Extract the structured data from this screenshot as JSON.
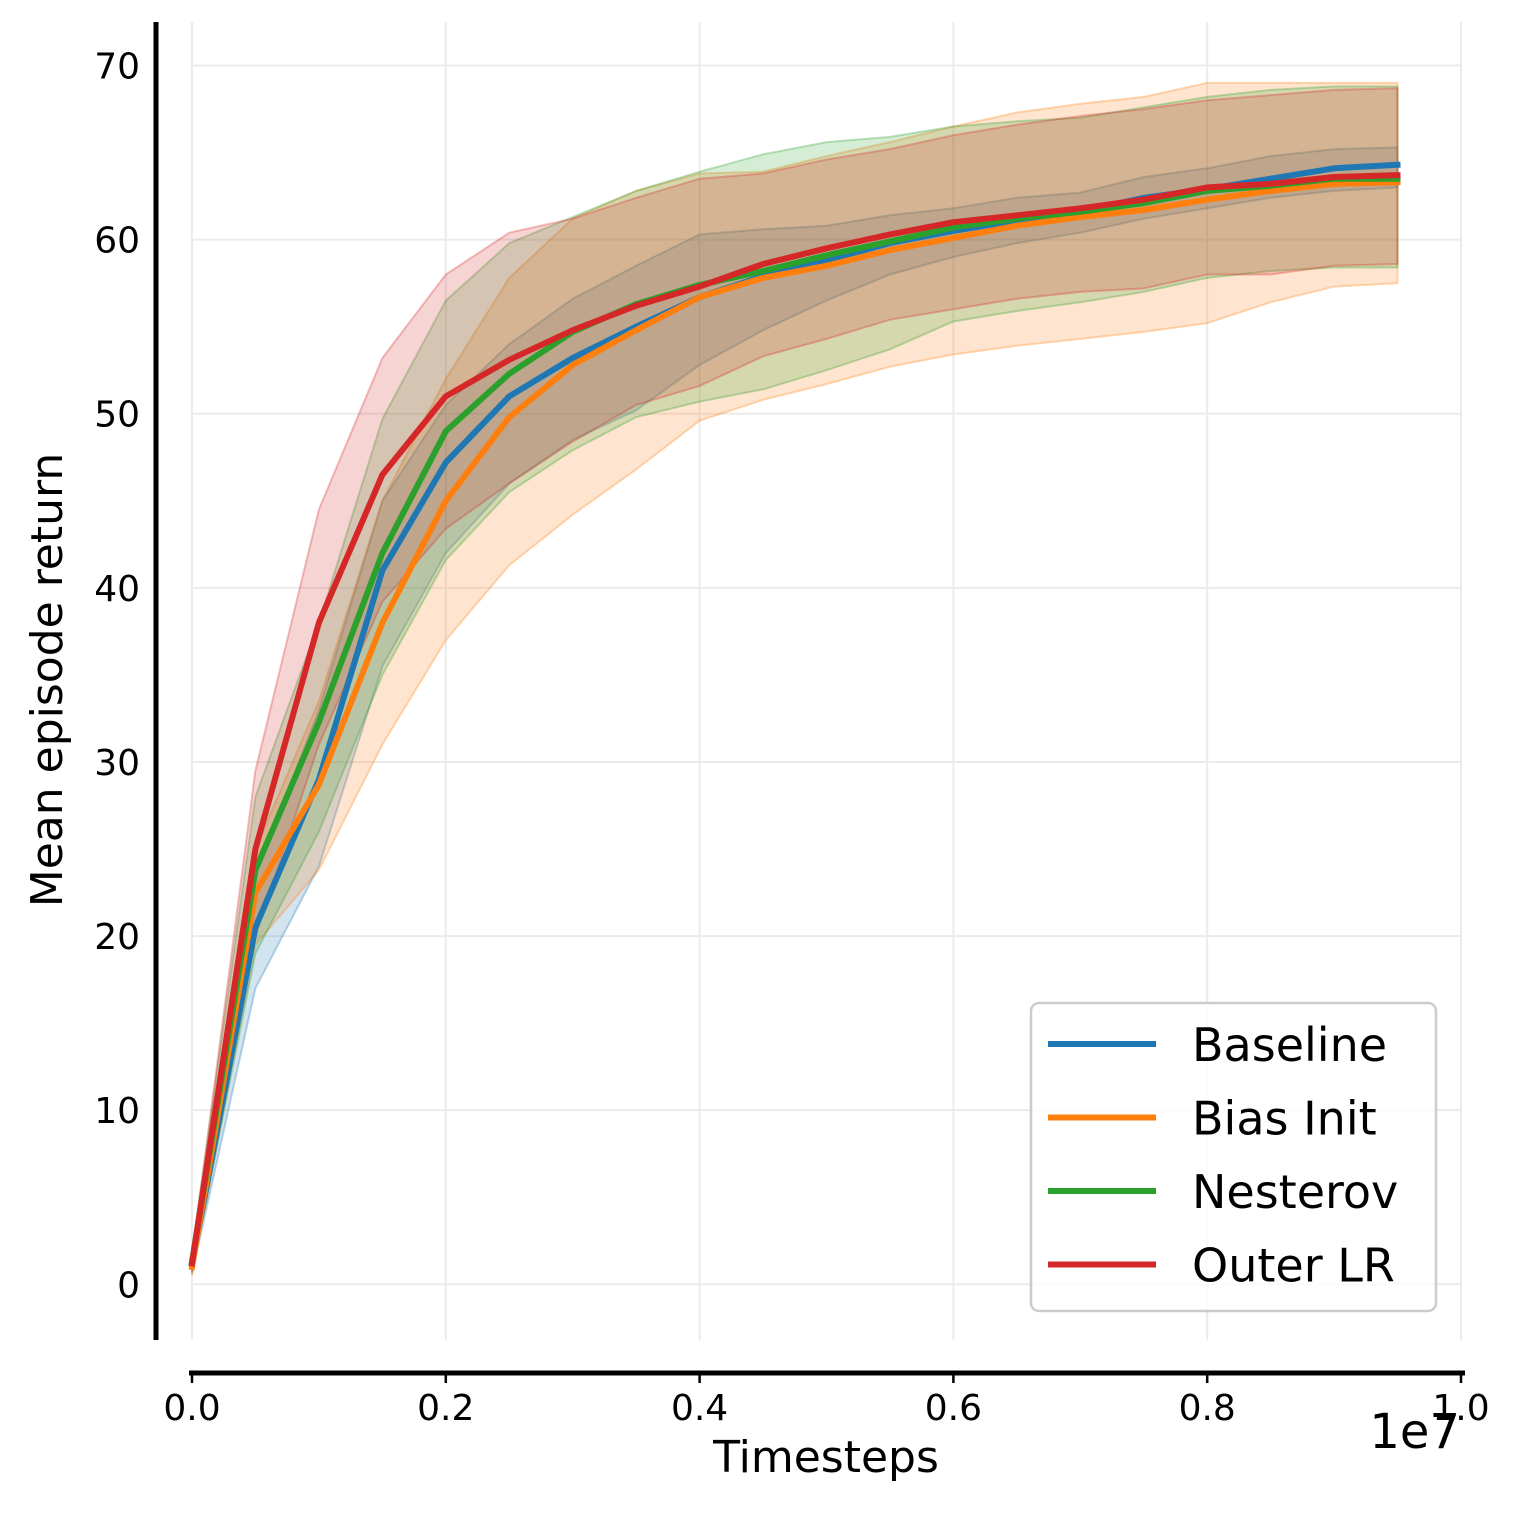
{
  "chart_data": {
    "type": "line",
    "xlabel": "Timesteps",
    "ylabel": "Mean episode return",
    "x_offset_label": "1e7",
    "xlim": [
      0,
      1.0
    ],
    "ylim": [
      -3.2,
      72.5
    ],
    "xticks": [
      0.0,
      0.2,
      0.4,
      0.6,
      0.8,
      1.0
    ],
    "xtick_labels": [
      "0.0",
      "0.2",
      "0.4",
      "0.6",
      "0.8",
      "1.0"
    ],
    "yticks": [
      0,
      10,
      20,
      30,
      40,
      50,
      60,
      70
    ],
    "ytick_labels": [
      "0",
      "10",
      "20",
      "30",
      "40",
      "50",
      "60",
      "70"
    ],
    "grid": true,
    "legend_position": "lower-right",
    "x": [
      0,
      0.05,
      0.1,
      0.15,
      0.2,
      0.25,
      0.3,
      0.35,
      0.4,
      0.45,
      0.5,
      0.55,
      0.6,
      0.65,
      0.7,
      0.75,
      0.8,
      0.85,
      0.9,
      0.95
    ],
    "series": [
      {
        "name": "Baseline",
        "color": "#1f77b4",
        "values": [
          1.2,
          20.5,
          29.0,
          41.0,
          47.2,
          51.0,
          53.2,
          55.0,
          56.7,
          57.9,
          58.8,
          59.8,
          60.5,
          61.1,
          61.6,
          62.4,
          62.9,
          63.5,
          64.1,
          64.3
        ],
        "lower": [
          0.6,
          17.0,
          24.0,
          35.5,
          42.0,
          46.0,
          48.5,
          50.2,
          52.8,
          54.8,
          56.5,
          58.0,
          59.0,
          59.8,
          60.4,
          61.2,
          61.8,
          62.4,
          62.8,
          63.0
        ],
        "upper": [
          1.8,
          23.5,
          33.0,
          45.0,
          50.5,
          54.0,
          56.6,
          58.5,
          60.3,
          60.6,
          60.8,
          61.4,
          61.8,
          62.4,
          62.7,
          63.6,
          64.1,
          64.8,
          65.2,
          65.3
        ]
      },
      {
        "name": "Bias Init",
        "color": "#ff7f0e",
        "values": [
          1.0,
          22.5,
          28.7,
          38.0,
          45.0,
          49.8,
          52.8,
          54.8,
          56.7,
          57.8,
          58.5,
          59.4,
          60.1,
          60.8,
          61.3,
          61.7,
          62.3,
          62.8,
          63.2,
          63.3
        ],
        "lower": [
          0.5,
          19.5,
          23.8,
          31.0,
          37.0,
          41.3,
          44.2,
          46.8,
          49.6,
          50.8,
          51.7,
          52.7,
          53.4,
          53.9,
          54.3,
          54.7,
          55.2,
          56.4,
          57.3,
          57.5
        ],
        "upper": [
          1.5,
          25.0,
          33.5,
          45.0,
          52.0,
          57.8,
          61.2,
          62.8,
          63.8,
          63.9,
          64.8,
          65.6,
          66.5,
          67.3,
          67.8,
          68.2,
          69.0,
          69.0,
          69.0,
          69.0
        ]
      },
      {
        "name": "Nesterov",
        "color": "#2ca02c",
        "values": [
          1.3,
          23.8,
          32.3,
          42.0,
          49.0,
          52.3,
          54.7,
          56.3,
          57.4,
          58.2,
          59.1,
          59.9,
          60.7,
          61.2,
          61.6,
          62.1,
          62.8,
          63.1,
          63.5,
          63.5
        ],
        "lower": [
          0.7,
          19.0,
          26.0,
          35.0,
          41.6,
          45.5,
          47.9,
          49.8,
          50.7,
          51.4,
          52.5,
          53.7,
          55.3,
          55.9,
          56.4,
          57.0,
          57.8,
          58.2,
          58.4,
          58.4
        ],
        "upper": [
          1.9,
          28.0,
          38.0,
          49.7,
          56.5,
          59.8,
          61.3,
          62.8,
          63.9,
          64.9,
          65.6,
          65.9,
          66.5,
          66.8,
          67.0,
          67.6,
          68.2,
          68.6,
          68.8,
          68.8
        ]
      },
      {
        "name": "Outer LR",
        "color": "#d62728",
        "values": [
          1.2,
          25.0,
          38.0,
          46.5,
          51.0,
          53.1,
          54.8,
          56.2,
          57.3,
          58.6,
          59.5,
          60.3,
          61.0,
          61.4,
          61.8,
          62.3,
          63.0,
          63.2,
          63.6,
          63.7
        ],
        "lower": [
          0.8,
          20.0,
          31.0,
          39.2,
          43.4,
          46.0,
          48.4,
          50.5,
          51.6,
          53.3,
          54.3,
          55.4,
          56.0,
          56.6,
          57.0,
          57.2,
          58.0,
          58.0,
          58.5,
          58.6
        ],
        "upper": [
          1.6,
          29.5,
          44.5,
          53.2,
          58.0,
          60.4,
          61.2,
          62.4,
          63.5,
          63.8,
          64.6,
          65.2,
          66.0,
          66.6,
          67.1,
          67.5,
          68.0,
          68.3,
          68.6,
          68.7
        ]
      }
    ]
  }
}
